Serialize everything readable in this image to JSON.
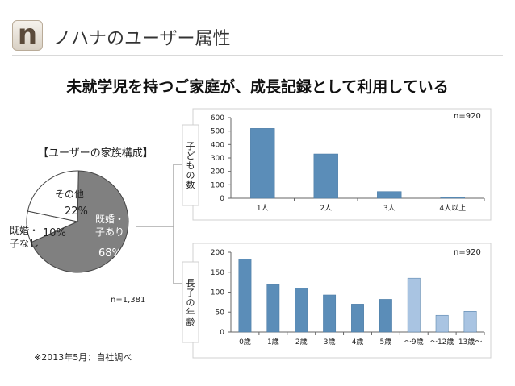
{
  "header": {
    "logo_letter": "n",
    "title": "ノハナのユーザー属性"
  },
  "headline": "未就学児を持つご家庭が、成長記録として利用している",
  "pie": {
    "title": "【ユーザーの家族構成】",
    "n_label": "n=1,381",
    "slices": [
      {
        "label_line1": "既婚・",
        "label_line2": "子あり",
        "percent": 68,
        "percent_label": "68%",
        "color": "#808080"
      },
      {
        "label_line1": "既婚・",
        "label_line2": "子なし",
        "percent": 10,
        "percent_label": "10%",
        "color": "#ffffff"
      },
      {
        "label_line1": "その他",
        "label_line2": "",
        "percent": 22,
        "percent_label": "22%",
        "color": "#ffffff"
      }
    ]
  },
  "footnote": "※2013年5月：自社調べ",
  "chart_data": [
    {
      "type": "bar",
      "title": "",
      "ylabel": "子どもの数",
      "n_label": "n=920",
      "categories": [
        "1人",
        "2人",
        "3人",
        "4人以上"
      ],
      "values": [
        520,
        330,
        50,
        8
      ],
      "ylim": [
        0,
        600
      ],
      "yticks": [
        0,
        100,
        200,
        300,
        400,
        500,
        600
      ],
      "colors": [
        "#5b8db8",
        "#5b8db8",
        "#5b8db8",
        "#5b8db8"
      ]
    },
    {
      "type": "bar",
      "title": "",
      "ylabel": "長子の年齢",
      "n_label": "n=920",
      "categories": [
        "0歳",
        "1歳",
        "2歳",
        "3歳",
        "4歳",
        "5歳",
        "～9歳",
        "～12歳",
        "13歳～"
      ],
      "values": [
        183,
        119,
        110,
        93,
        70,
        82,
        135,
        42,
        52
      ],
      "ylim": [
        0,
        200
      ],
      "yticks": [
        0,
        50,
        100,
        150,
        200
      ],
      "colors": [
        "#5b8db8",
        "#5b8db8",
        "#5b8db8",
        "#5b8db8",
        "#5b8db8",
        "#5b8db8",
        "#a9c4e2",
        "#a9c4e2",
        "#a9c4e2"
      ]
    }
  ]
}
